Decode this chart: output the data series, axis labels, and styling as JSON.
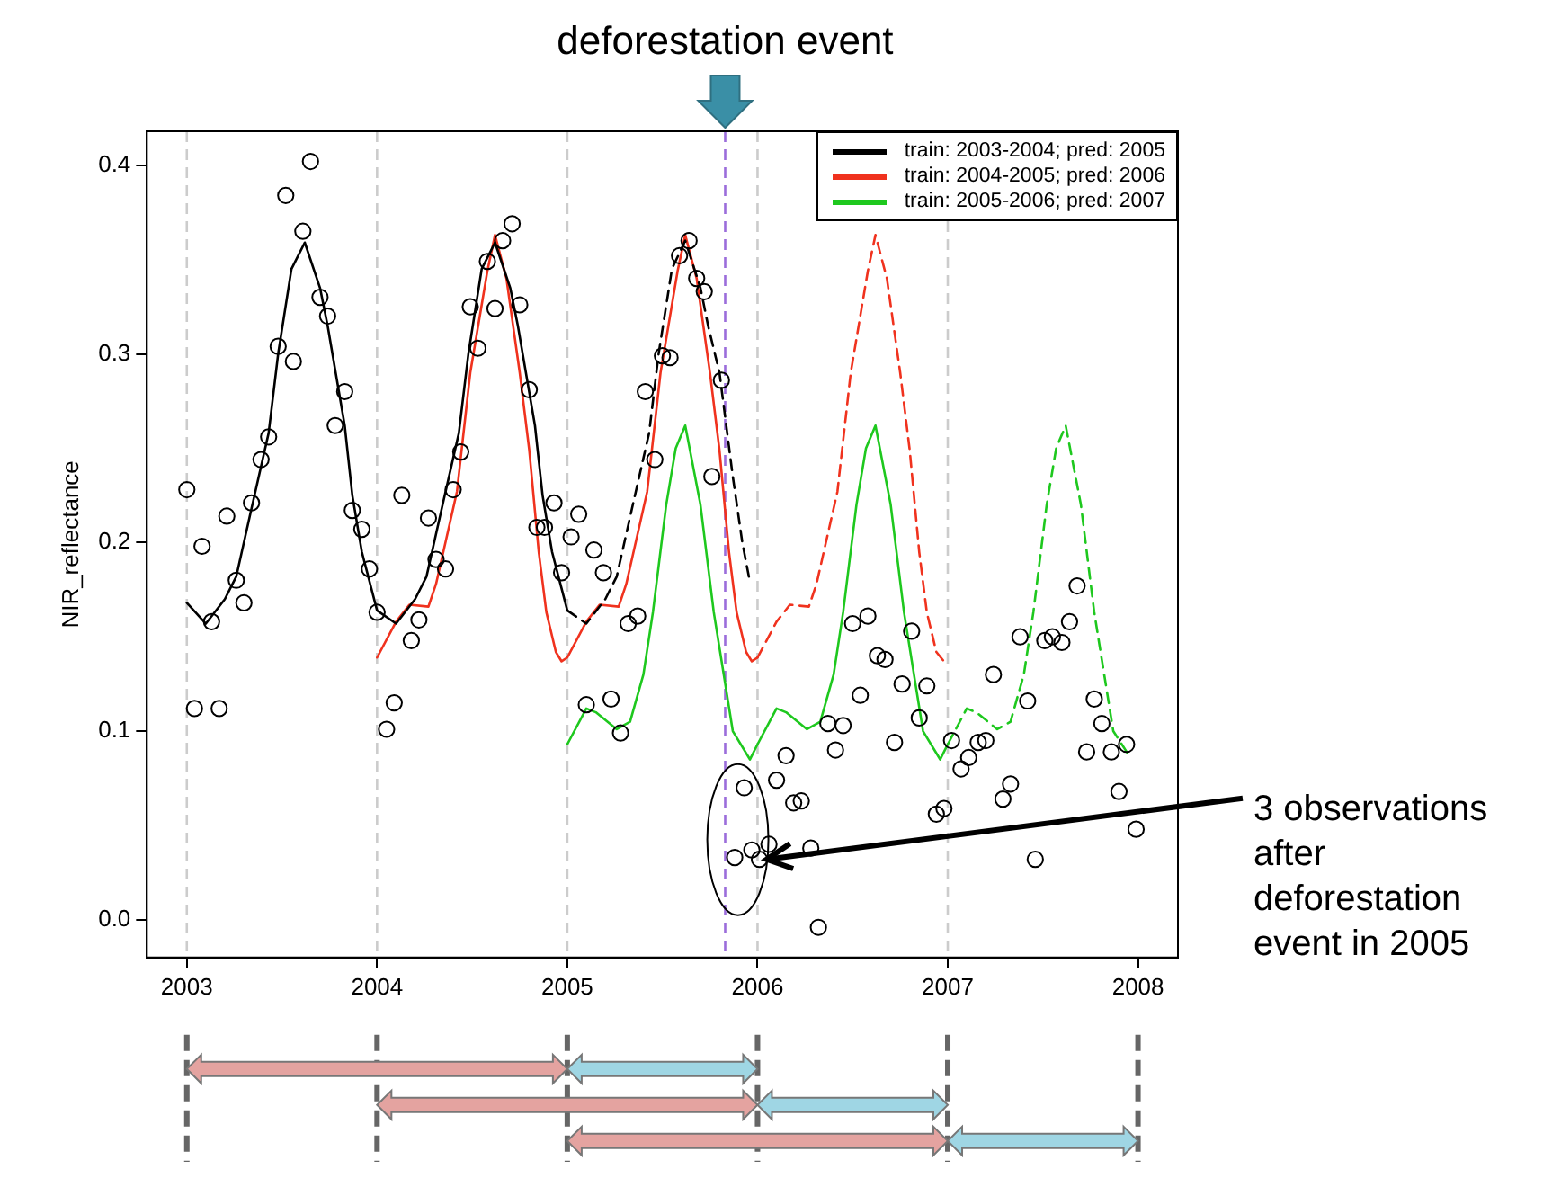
{
  "chart_data": {
    "type": "line",
    "ylabel": "NIR_reflectance",
    "legend": "top right",
    "xlim": [
      2002.79,
      2008.21
    ],
    "ylim": [
      -0.02,
      0.418
    ],
    "xticks": [
      2003,
      2004,
      2005,
      2006,
      2007,
      2008
    ],
    "yticks": [
      {
        "value": 0,
        "label": "0.0"
      },
      {
        "value": 0.1,
        "label": "0.1"
      },
      {
        "value": 0.2,
        "label": "0.2"
      },
      {
        "value": 0.3,
        "label": "0.3"
      },
      {
        "value": 0.4,
        "label": "0.4"
      }
    ],
    "annotations": [
      {
        "text": "3 observations after deforestation event in 2005",
        "x": 2006.01,
        "y": 0.032
      }
    ],
    "ref_lines": [
      {
        "axis": "x",
        "value": 2003,
        "color": "#cccccc",
        "line_style": "dashed"
      },
      {
        "axis": "x",
        "value": 2004,
        "color": "#cccccc",
        "line_style": "dashed"
      },
      {
        "axis": "x",
        "value": 2005,
        "color": "#cccccc",
        "line_style": "dashed"
      },
      {
        "axis": "x",
        "value": 2006,
        "color": "#cccccc",
        "line_style": "dashed"
      },
      {
        "axis": "x",
        "value": 2007,
        "color": "#cccccc",
        "line_style": "dashed"
      },
      {
        "axis": "x",
        "value": 2005.83,
        "label": "deforestation event",
        "color": "#9b6ddb",
        "line_style": "dashed"
      }
    ],
    "series": [
      {
        "type": "scatter",
        "color": "#000000",
        "marker": "circle",
        "x": [
          2003.0,
          2003.04,
          2003.08,
          2003.13,
          2003.17,
          2003.21,
          2003.26,
          2003.3,
          2003.34,
          2003.39,
          2003.43,
          2003.48,
          2003.52,
          2003.56,
          2003.61,
          2003.65,
          2003.7,
          2003.74,
          2003.78,
          2003.83,
          2003.87,
          2003.92,
          2003.96,
          2004.0,
          2004.05,
          2004.09,
          2004.13,
          2004.18,
          2004.22,
          2004.27,
          2004.31,
          2004.36,
          2004.4,
          2004.44,
          2004.49,
          2004.53,
          2004.58,
          2004.62,
          2004.66,
          2004.71,
          2004.75,
          2004.8,
          2004.84,
          2004.88,
          2004.93,
          2004.97,
          2005.02,
          2005.06,
          2005.1,
          2005.14,
          2005.19,
          2005.23,
          2005.28,
          2005.32,
          2005.37,
          2005.41,
          2005.46,
          2005.5,
          2005.54,
          2005.59,
          2005.64,
          2005.68,
          2005.72,
          2005.76,
          2005.81,
          2005.88,
          2005.93,
          2005.97,
          2006.01,
          2006.06,
          2006.1,
          2006.15,
          2006.19,
          2006.23,
          2006.28,
          2006.32,
          2006.37,
          2006.41,
          2006.45,
          2006.5,
          2006.54,
          2006.58,
          2006.63,
          2006.67,
          2006.72,
          2006.76,
          2006.81,
          2006.85,
          2006.89,
          2006.94,
          2006.98,
          2007.02,
          2007.07,
          2007.11,
          2007.16,
          2007.2,
          2007.24,
          2007.29,
          2007.33,
          2007.38,
          2007.42,
          2007.46,
          2007.51,
          2007.55,
          2007.6,
          2007.64,
          2007.68,
          2007.73,
          2007.77,
          2007.81,
          2007.86,
          2007.9,
          2007.94,
          2007.99
        ],
        "values": [
          0.228,
          0.112,
          0.198,
          0.158,
          0.112,
          0.214,
          0.18,
          0.168,
          0.221,
          0.244,
          0.256,
          0.304,
          0.384,
          0.296,
          0.365,
          0.402,
          0.33,
          0.32,
          0.262,
          0.28,
          0.217,
          0.207,
          0.186,
          0.163,
          0.101,
          0.115,
          0.225,
          0.148,
          0.159,
          0.213,
          0.191,
          0.186,
          0.228,
          0.248,
          0.325,
          0.303,
          0.349,
          0.324,
          0.36,
          0.369,
          0.326,
          0.281,
          0.208,
          0.208,
          0.221,
          0.184,
          0.203,
          0.215,
          0.114,
          0.196,
          0.184,
          0.117,
          0.099,
          0.157,
          0.161,
          0.28,
          0.244,
          0.299,
          0.298,
          0.352,
          0.36,
          0.34,
          0.333,
          0.235,
          0.286,
          0.033,
          0.07,
          0.037,
          0.032,
          0.04,
          0.074,
          0.087,
          0.062,
          0.063,
          0.038,
          -0.004,
          0.104,
          0.09,
          0.103,
          0.157,
          0.119,
          0.161,
          0.14,
          0.138,
          0.094,
          0.125,
          0.153,
          0.107,
          0.124,
          0.056,
          0.059,
          0.095,
          0.08,
          0.086,
          0.094,
          0.095,
          0.13,
          0.064,
          0.072,
          0.15,
          0.116,
          0.032,
          0.148,
          0.15,
          0.147,
          0.158,
          0.177,
          0.089,
          0.117,
          0.104,
          0.089,
          0.068,
          0.093,
          0.048
        ]
      },
      {
        "name": "train: 2003-2004; pred: 2005",
        "color": "#000000",
        "line_style": "solid",
        "x": [
          2003,
          2003.1,
          2003.2,
          2003.26,
          2003.34,
          2003.43,
          2003.48,
          2003.55,
          2003.62,
          2003.7,
          2003.74,
          2003.83,
          2003.87,
          2003.92,
          2004,
          2004.1,
          2004.2,
          2004.26,
          2004.34,
          2004.43,
          2004.48,
          2004.55,
          2004.62,
          2004.7,
          2004.74,
          2004.83,
          2004.87,
          2004.92,
          2005
        ],
        "values": [
          0.168,
          0.157,
          0.17,
          0.182,
          0.218,
          0.258,
          0.3,
          0.345,
          0.359,
          0.335,
          0.315,
          0.262,
          0.225,
          0.195,
          0.164,
          0.157,
          0.17,
          0.182,
          0.218,
          0.258,
          0.3,
          0.345,
          0.359,
          0.335,
          0.315,
          0.262,
          0.225,
          0.195,
          0.164
        ]
      },
      {
        "color": "#000000",
        "line_style": "dashed",
        "x": [
          2005,
          2005.1,
          2005.2,
          2005.26,
          2005.34,
          2005.43,
          2005.48,
          2005.55,
          2005.62,
          2005.7,
          2005.74,
          2005.8,
          2005.87,
          2005.92,
          2005.96
        ],
        "values": [
          0.164,
          0.157,
          0.17,
          0.182,
          0.218,
          0.258,
          0.3,
          0.345,
          0.36,
          0.335,
          0.315,
          0.29,
          0.235,
          0.2,
          0.179
        ]
      },
      {
        "name": "train: 2004-2005; pred: 2006",
        "color": "#f0321e",
        "line_style": "solid",
        "x": [
          2004,
          2004.1,
          2004.17,
          2004.27,
          2004.31,
          2004.42,
          2004.49,
          2004.58,
          2004.62,
          2004.68,
          2004.75,
          2004.8,
          2004.85,
          2004.89,
          2004.94,
          2004.97,
          2005,
          2005.1,
          2005.17,
          2005.27,
          2005.31,
          2005.42,
          2005.49,
          2005.58,
          2005.62,
          2005.68,
          2005.75,
          2005.8,
          2005.85,
          2005.89,
          2005.94,
          2005.97,
          2006
        ],
        "values": [
          0.139,
          0.158,
          0.167,
          0.166,
          0.178,
          0.227,
          0.29,
          0.344,
          0.363,
          0.34,
          0.29,
          0.249,
          0.195,
          0.163,
          0.142,
          0.137,
          0.139,
          0.158,
          0.167,
          0.166,
          0.178,
          0.227,
          0.29,
          0.344,
          0.363,
          0.34,
          0.29,
          0.249,
          0.195,
          0.163,
          0.142,
          0.137,
          0.139
        ]
      },
      {
        "color": "#f0321e",
        "line_style": "dashed",
        "x": [
          2006,
          2006.1,
          2006.17,
          2006.27,
          2006.31,
          2006.42,
          2006.49,
          2006.58,
          2006.62,
          2006.68,
          2006.75,
          2006.8,
          2006.85,
          2006.89,
          2006.94,
          2006.98
        ],
        "values": [
          0.139,
          0.158,
          0.167,
          0.166,
          0.178,
          0.227,
          0.29,
          0.344,
          0.363,
          0.34,
          0.29,
          0.249,
          0.195,
          0.163,
          0.142,
          0.137
        ]
      },
      {
        "name": "train: 2005-2006; pred: 2007",
        "color": "#1ec81e",
        "line_style": "solid",
        "x": [
          2005,
          2005.1,
          2005.15,
          2005.26,
          2005.33,
          2005.4,
          2005.45,
          2005.52,
          2005.57,
          2005.62,
          2005.7,
          2005.77,
          2005.87,
          2005.96,
          2006,
          2006.1,
          2006.15,
          2006.26,
          2006.33,
          2006.4,
          2006.45,
          2006.52,
          2006.57,
          2006.62,
          2006.7,
          2006.77,
          2006.87,
          2006.96,
          2007
        ],
        "values": [
          0.093,
          0.112,
          0.11,
          0.101,
          0.105,
          0.13,
          0.163,
          0.22,
          0.25,
          0.262,
          0.22,
          0.163,
          0.1,
          0.085,
          0.093,
          0.112,
          0.11,
          0.101,
          0.105,
          0.13,
          0.163,
          0.22,
          0.25,
          0.262,
          0.22,
          0.163,
          0.1,
          0.085,
          0.093
        ]
      },
      {
        "color": "#1ec81e",
        "line_style": "dashed",
        "x": [
          2007,
          2007.1,
          2007.15,
          2007.26,
          2007.33,
          2007.4,
          2007.45,
          2007.52,
          2007.57,
          2007.62,
          2007.7,
          2007.77,
          2007.87,
          2007.96
        ],
        "values": [
          0.093,
          0.112,
          0.11,
          0.101,
          0.105,
          0.13,
          0.163,
          0.22,
          0.25,
          0.262,
          0.22,
          0.163,
          0.1,
          0.086
        ]
      }
    ]
  }
}
